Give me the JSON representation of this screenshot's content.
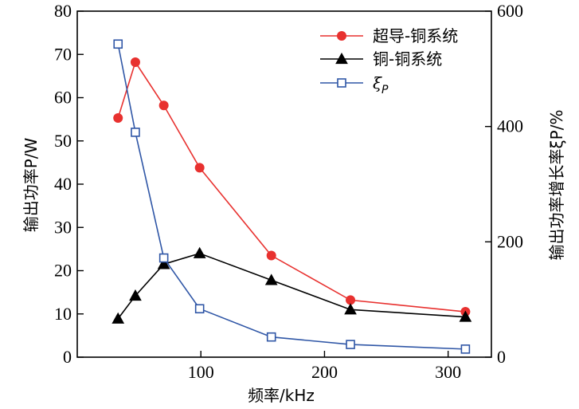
{
  "chart_data": {
    "type": "line",
    "xlabel": "频率/kHz",
    "ylabel_left": "输出功率P/W",
    "ylabel_right": "输出功率增长率ξP/%",
    "xlim": [
      0,
      335
    ],
    "ylim_left": [
      0,
      80
    ],
    "ylim_right": [
      0,
      600
    ],
    "x_ticks": [
      100,
      200,
      300
    ],
    "y_ticks_left": [
      0,
      10,
      20,
      30,
      40,
      50,
      60,
      70,
      80
    ],
    "y_ticks_right": [
      0,
      200,
      400,
      600
    ],
    "legend_placement": "top-right",
    "grid": false,
    "series": [
      {
        "name": "超导-铜系统",
        "axis": "left",
        "color": "#e8312f",
        "marker": "circle-filled",
        "x": [
          33,
          47,
          70,
          99,
          157,
          221,
          314
        ],
        "y": [
          55.3,
          68.2,
          58.2,
          43.8,
          23.5,
          13.2,
          10.5
        ]
      },
      {
        "name": "铜-铜系统",
        "axis": "left",
        "color": "#000000",
        "marker": "triangle-filled",
        "x": [
          33,
          47,
          70,
          99,
          157,
          221,
          314
        ],
        "y": [
          8.9,
          14.2,
          21.5,
          24.0,
          17.8,
          11.0,
          9.3
        ]
      },
      {
        "name": "ξP",
        "name_main": "ξ",
        "name_sub": "P",
        "axis": "right",
        "color": "#2f56a6",
        "marker": "square-open",
        "x": [
          33,
          47,
          70,
          99,
          157,
          221,
          314
        ],
        "y": [
          543,
          390,
          172,
          84,
          35,
          22,
          14
        ]
      }
    ]
  }
}
